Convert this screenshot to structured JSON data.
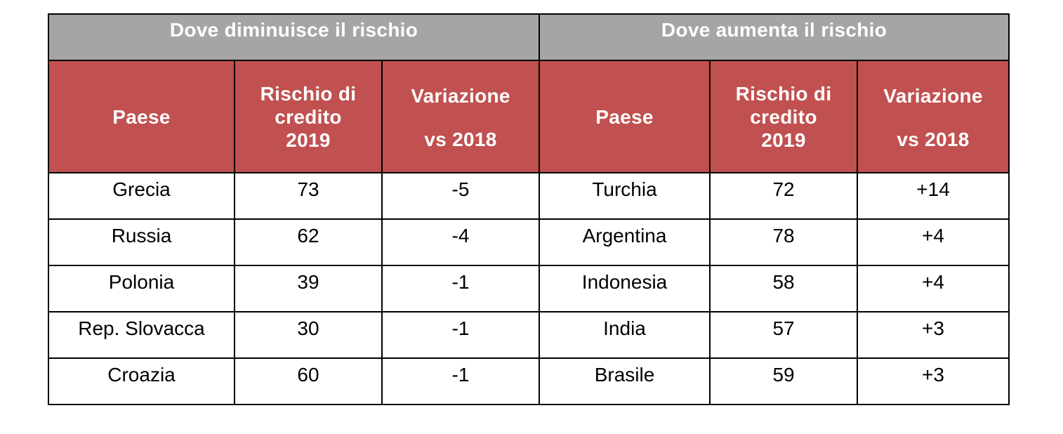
{
  "groups": {
    "decrease": "Dove diminuisce il rischio",
    "increase": "Dove aumenta il rischio"
  },
  "columns": {
    "country": "Paese",
    "risk_line1": "Rischio di",
    "risk_line2": "credito",
    "risk_line3": "2019",
    "change_line1": "Variazione",
    "change_line2": "vs 2018"
  },
  "rows": [
    {
      "left_country": "Grecia",
      "left_risk": "73",
      "left_change": "-5",
      "right_country": "Turchia",
      "right_risk": "72",
      "right_change": "+14"
    },
    {
      "left_country": "Russia",
      "left_risk": "62",
      "left_change": "-4",
      "right_country": "Argentina",
      "right_risk": "78",
      "right_change": "+4"
    },
    {
      "left_country": "Polonia",
      "left_risk": "39",
      "left_change": "-1",
      "right_country": "Indonesia",
      "right_risk": "58",
      "right_change": "+4"
    },
    {
      "left_country": "Rep. Slovacca",
      "left_risk": "30",
      "left_change": "-1",
      "right_country": "India",
      "right_risk": "57",
      "right_change": "+3"
    },
    {
      "left_country": "Croazia",
      "left_risk": "60",
      "left_change": "-1",
      "right_country": "Brasile",
      "right_risk": "59",
      "right_change": "+3"
    }
  ],
  "colors": {
    "group_header_bg": "#a5a5a5",
    "column_header_bg": "#c05150",
    "header_text": "#ffffff"
  }
}
